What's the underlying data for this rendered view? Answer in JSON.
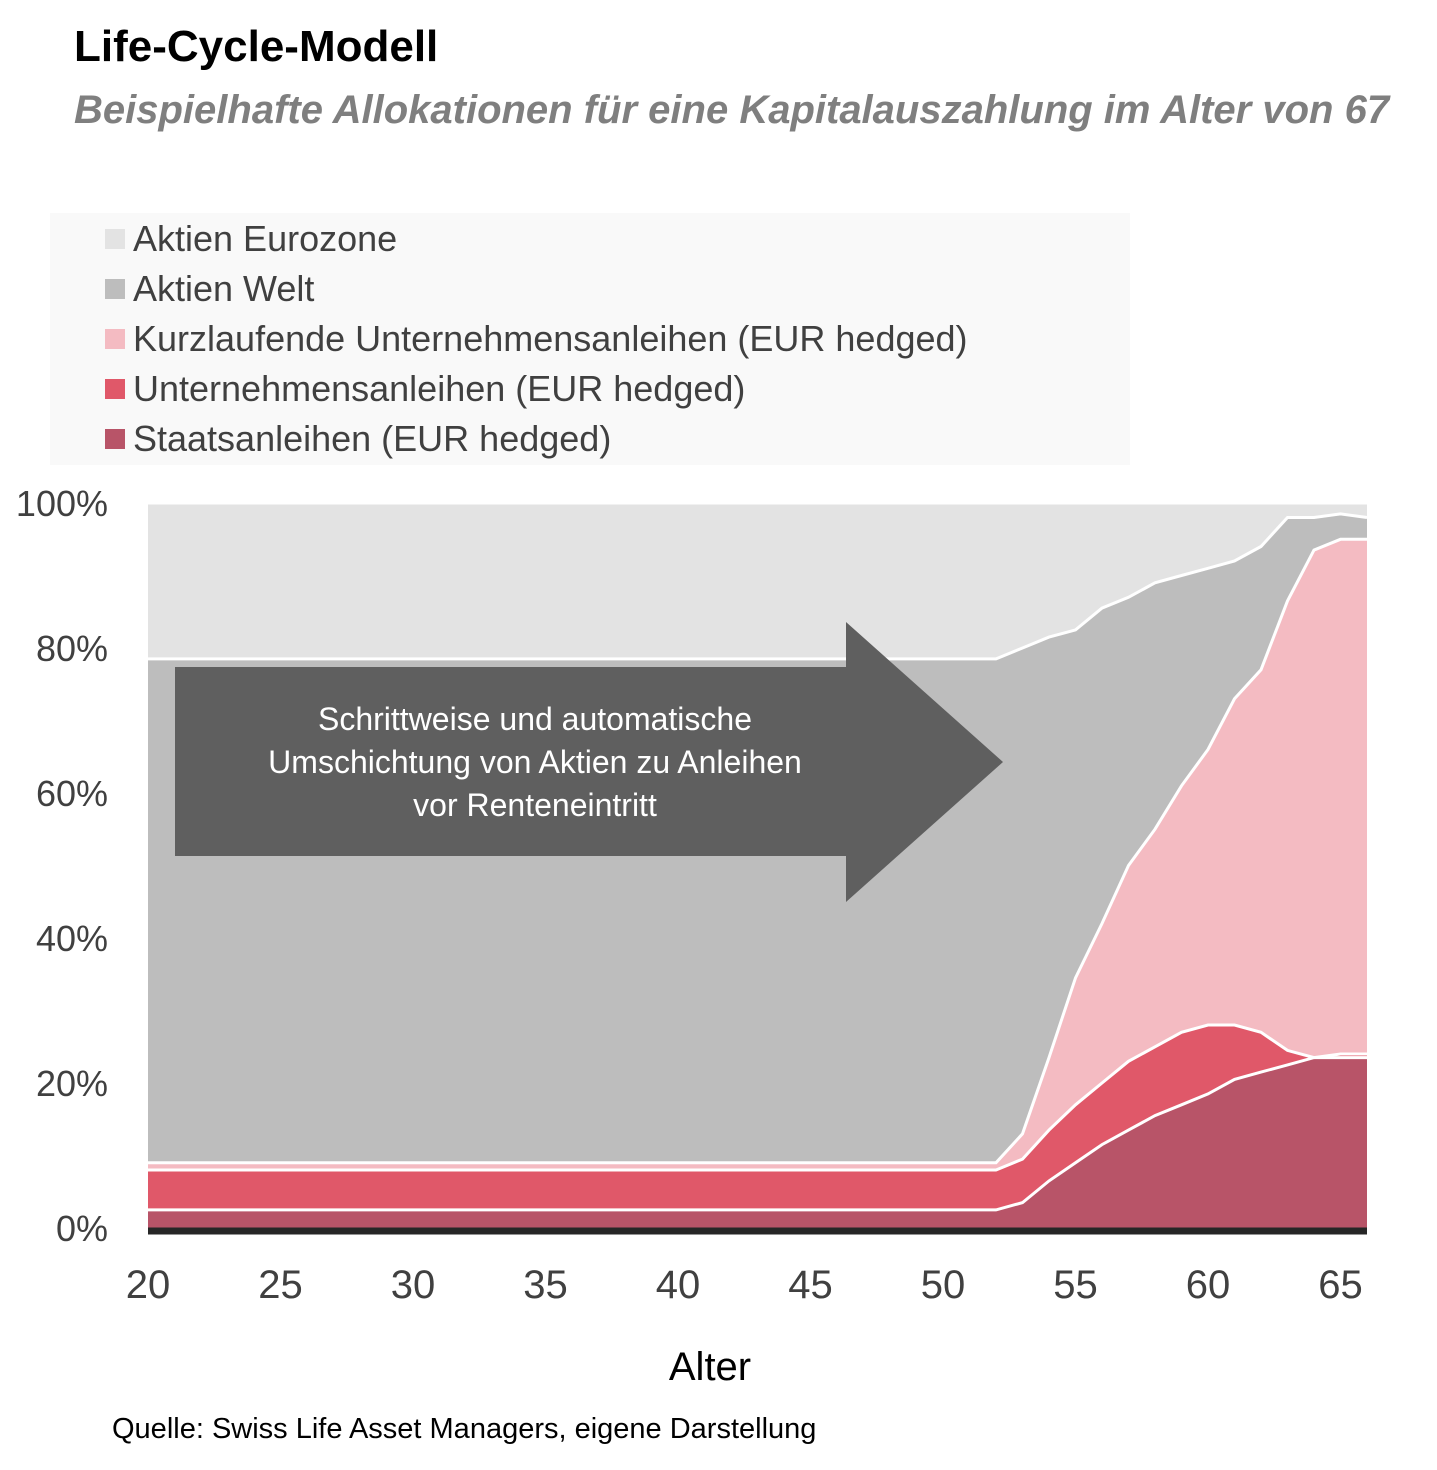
{
  "title": "Life-Cycle-Modell",
  "subtitle": "Beispielhafte Allokationen für eine Kapitalauszahlung im Alter von 67",
  "source": "Quelle: Swiss Life Asset Managers, eigene Darstellung",
  "annotation": {
    "lines": [
      "Schrittweise und automatische",
      "Umschichtung  von Aktien zu Anleihen",
      "vor Renteneintritt"
    ],
    "color": "#5f5f5f"
  },
  "chart_data": {
    "type": "area",
    "stacked": true,
    "xlabel": "Alter",
    "ylabel": "",
    "xlim": [
      20,
      66
    ],
    "ylim": [
      0,
      100
    ],
    "x_ticks": [
      "20",
      "25",
      "30",
      "35",
      "40",
      "45",
      "50",
      "55",
      "60",
      "65"
    ],
    "y_ticks": [
      "0%",
      "20%",
      "40%",
      "60%",
      "80%",
      "100%"
    ],
    "grid": true,
    "legend_position": "top",
    "x": [
      20,
      52,
      53,
      54,
      55,
      56,
      57,
      58,
      59,
      60,
      61,
      62,
      63,
      64,
      65,
      66
    ],
    "series": [
      {
        "name": "Staatsanleihen (EUR hedged)",
        "color": "#b85468",
        "values": [
          2.5,
          2.5,
          3.5,
          6.5,
          9.0,
          11.5,
          13.5,
          15.5,
          17.0,
          18.5,
          20.5,
          21.5,
          22.5,
          23.5,
          23.5,
          23.5
        ]
      },
      {
        "name": "Unternehmensanleihen (EUR hedged)",
        "color": "#e05869",
        "values": [
          5.5,
          5.5,
          6.0,
          7.0,
          8.0,
          8.5,
          9.5,
          9.5,
          10.0,
          9.5,
          7.5,
          5.5,
          2.0,
          0.0,
          0.5,
          0.5
        ]
      },
      {
        "name": "Kurzlaufende Unternehmensanleihen (EUR hedged)",
        "color": "#f4bbc2",
        "values": [
          1.0,
          1.0,
          3.5,
          10.0,
          17.5,
          22.0,
          27.0,
          30.0,
          34.0,
          38.0,
          45.0,
          50.0,
          62.0,
          70.0,
          71.0,
          71.0
        ]
      },
      {
        "name": "Aktien Welt",
        "color": "#bdbdbd",
        "values": [
          69.5,
          69.5,
          67.0,
          58.0,
          48.0,
          43.5,
          37.0,
          34.0,
          29.0,
          25.0,
          19.0,
          17.0,
          11.5,
          4.5,
          3.5,
          3.0
        ]
      },
      {
        "name": "Aktien Eurozone",
        "color": "#e3e3e3",
        "values": [
          21.5,
          21.5,
          20.0,
          18.5,
          17.5,
          14.5,
          13.0,
          11.0,
          10.0,
          9.0,
          8.0,
          6.0,
          2.0,
          2.0,
          1.5,
          2.0
        ]
      }
    ]
  }
}
